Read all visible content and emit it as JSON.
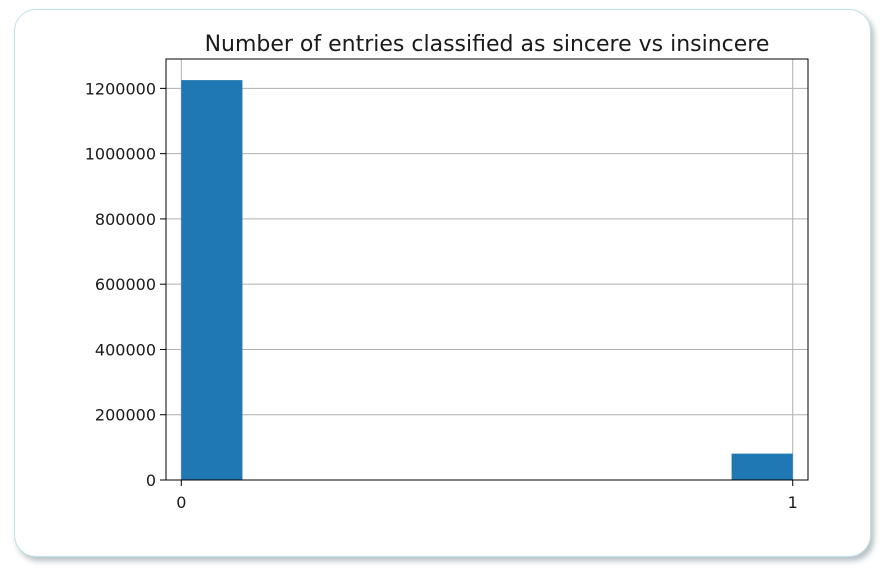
{
  "chart_data": {
    "type": "bar",
    "title": "Number of entries classified as sincere vs insincere",
    "xlabel": "",
    "ylabel": "",
    "bins": [
      {
        "x_start": 0.0,
        "x_end": 0.1,
        "value": 1225312
      },
      {
        "x_start": 0.9,
        "x_end": 1.0,
        "value": 80810
      }
    ],
    "xlim": [
      -0.025,
      1.025
    ],
    "ylim": [
      0,
      1290000
    ],
    "xticks": [
      0,
      1
    ],
    "xtick_labels": [
      "0",
      "1"
    ],
    "yticks": [
      0,
      200000,
      400000,
      600000,
      800000,
      1000000,
      1200000
    ],
    "ytick_labels": [
      "0",
      "200000",
      "400000",
      "600000",
      "800000",
      "1000000",
      "1200000"
    ],
    "grid": true,
    "colors": {
      "bar": "#1f77b4",
      "grid": "#b0b0b0",
      "axis": "#000000",
      "frame_border": "#bfe3e6"
    }
  }
}
